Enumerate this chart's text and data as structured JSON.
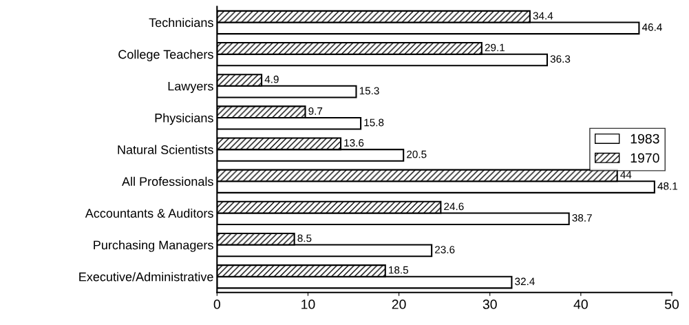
{
  "chart_data": {
    "type": "bar",
    "orientation": "horizontal",
    "categories": [
      "Technicians",
      "College Teachers",
      "Lawyers",
      "Physicians",
      "Natural Scientists",
      "All Professionals",
      "Accountants & Auditors",
      "Purchasing Managers",
      "Executive/Administrative"
    ],
    "series": [
      {
        "name": "1983",
        "color": "#ffffff",
        "values": [
          46.4,
          36.3,
          15.3,
          15.8,
          20.5,
          48.1,
          38.7,
          23.6,
          32.4
        ]
      },
      {
        "name": "1970",
        "color": "#000000",
        "values": [
          34.4,
          29.1,
          4.9,
          9.7,
          13.6,
          44,
          24.6,
          8.5,
          18.5
        ]
      }
    ],
    "xlim": [
      0,
      50
    ],
    "xticks": [
      0,
      10,
      20,
      30,
      40,
      50
    ],
    "data_labels": true,
    "grid": false,
    "legend": "right"
  }
}
